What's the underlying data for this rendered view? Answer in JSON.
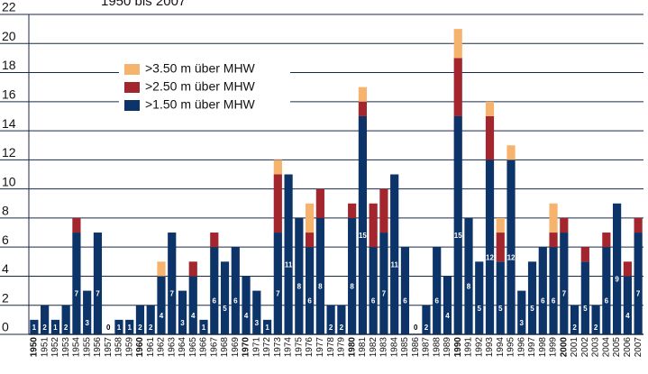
{
  "chart_data": {
    "type": "bar",
    "stacked": true,
    "subtitle": "1950 bis 2007",
    "categories": [
      "1950",
      "1951",
      "1952",
      "1953",
      "1954",
      "1955",
      "1956",
      "1957",
      "1958",
      "1959",
      "1960",
      "1961",
      "1962",
      "1963",
      "1964",
      "1965",
      "1966",
      "1967",
      "1968",
      "1969",
      "1970",
      "1971",
      "1972",
      "1973",
      "1974",
      "1975",
      "1976",
      "1977",
      "1978",
      "1979",
      "1980",
      "1981",
      "1982",
      "1983",
      "1984",
      "1985",
      "1986",
      "1987",
      "1988",
      "1989",
      "1990",
      "1991",
      "1992",
      "1993",
      "1994",
      "1995",
      "1996",
      "1997",
      "1998",
      "1999",
      "2000",
      "2001",
      "2002",
      "2003",
      "2004",
      "2005",
      "2006",
      "2007"
    ],
    "series": [
      {
        "name": ">3.50 m über MHW",
        "color": "#f5b36e",
        "values": [
          0,
          0,
          0,
          0,
          0,
          0,
          0,
          0,
          0,
          0,
          0,
          0,
          1,
          0,
          0,
          0,
          0,
          0,
          0,
          0,
          0,
          0,
          0,
          1,
          0,
          0,
          2,
          0,
          0,
          0,
          0,
          1,
          0,
          0,
          0,
          0,
          0,
          0,
          0,
          0,
          2,
          0,
          0,
          1,
          1,
          1,
          0,
          0,
          0,
          2,
          0,
          0,
          0,
          0,
          0,
          0,
          0,
          0
        ]
      },
      {
        "name": ">2.50 m über MHW",
        "color": "#a3262e",
        "values": [
          0,
          0,
          0,
          0,
          1,
          0,
          0,
          0,
          0,
          0,
          0,
          0,
          0,
          0,
          0,
          1,
          0,
          1,
          0,
          0,
          0,
          0,
          0,
          4,
          0,
          0,
          1,
          2,
          0,
          0,
          1,
          1,
          3,
          3,
          0,
          0,
          0,
          0,
          0,
          0,
          4,
          0,
          0,
          3,
          2,
          0,
          0,
          0,
          0,
          1,
          1,
          0,
          1,
          0,
          1,
          0,
          1,
          1
        ]
      },
      {
        "name": ">1.50 m über MHW",
        "color": "#0c3468",
        "values": [
          1,
          2,
          1,
          2,
          7,
          3,
          7,
          0,
          1,
          1,
          2,
          2,
          4,
          7,
          3,
          4,
          1,
          6,
          5,
          6,
          4,
          3,
          1,
          7,
          11,
          8,
          6,
          8,
          2,
          2,
          8,
          15,
          6,
          7,
          11,
          6,
          0,
          2,
          6,
          4,
          15,
          8,
          5,
          12,
          5,
          12,
          3,
          5,
          6,
          6,
          7,
          2,
          5,
          2,
          6,
          9,
          4,
          7
        ]
      }
    ],
    "ylim": [
      0,
      22
    ],
    "yticks": [
      0,
      2,
      4,
      6,
      8,
      10,
      12,
      14,
      16,
      18,
      20,
      22
    ],
    "grid": true
  }
}
